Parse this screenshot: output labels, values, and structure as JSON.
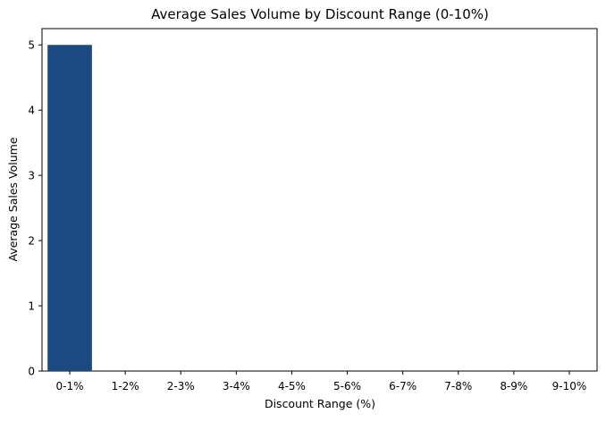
{
  "chart_data": {
    "type": "bar",
    "title": "Average Sales Volume by Discount Range (0-10%)",
    "xlabel": "Discount Range (%)",
    "ylabel": "Average Sales Volume",
    "categories": [
      "0-1%",
      "1-2%",
      "2-3%",
      "3-4%",
      "4-5%",
      "5-6%",
      "6-7%",
      "7-8%",
      "8-9%",
      "9-10%"
    ],
    "values": [
      5,
      0,
      0,
      0,
      0,
      0,
      0,
      0,
      0,
      0
    ],
    "ylim": [
      0,
      5.25
    ],
    "yticks": [
      0,
      1,
      2,
      3,
      4,
      5
    ],
    "grid": false,
    "colors": {
      "bar": "#1b4a80",
      "axis": "#000000",
      "background": "#ffffff"
    }
  }
}
